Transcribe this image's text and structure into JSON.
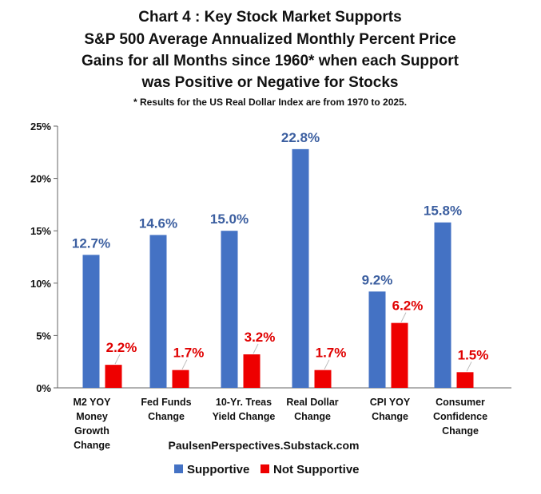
{
  "chart_data": {
    "type": "bar",
    "title": [
      "Chart 4 : Key Stock Market Supports",
      "S&P 500 Average Annualized Monthly Percent Price",
      "Gains for all Months since 1960* when each Support",
      "was Positive or Negative for Stocks"
    ],
    "subtitle": "* Results for the US Real Dollar Index are from 1970 to 2025.",
    "source": "PaulsenPerspectives.Substack.com",
    "categories": [
      [
        "M2 YOY",
        "Money",
        "Growth",
        "Change"
      ],
      [
        "Fed Funds",
        "Change"
      ],
      [
        "10-Yr. Treas",
        "Yield Change"
      ],
      [
        "Real Dollar",
        "Change"
      ],
      [
        "CPI YOY",
        "Change"
      ],
      [
        "Consumer",
        "Confidence",
        "Change"
      ]
    ],
    "series": [
      {
        "name": "Supportive",
        "color": "#4472C4",
        "label_color": "#3C5FA0",
        "values": [
          12.7,
          14.6,
          15.0,
          22.8,
          9.2,
          15.8
        ],
        "labels": [
          "12.7%",
          "14.6%",
          "15.0%",
          "22.8%",
          "9.2%",
          "15.8%"
        ]
      },
      {
        "name": "Not Supportive",
        "color": "#EE0000",
        "label_color": "#E00000",
        "values": [
          2.2,
          1.7,
          3.2,
          1.7,
          6.2,
          1.5
        ],
        "labels": [
          "2.2%",
          "1.7%",
          "3.2%",
          "1.7%",
          "6.2%",
          "1.5%"
        ]
      }
    ],
    "yticks": [
      "0%",
      "5%",
      "10%",
      "15%",
      "20%",
      "25%"
    ],
    "ylim": [
      0,
      25
    ],
    "grid": false,
    "legend": "bottom"
  }
}
